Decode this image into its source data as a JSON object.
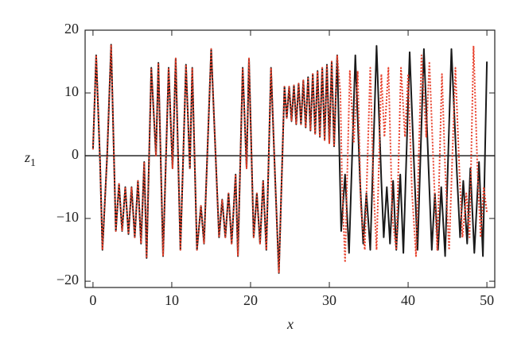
{
  "chart_data": {
    "type": "line",
    "xlabel": "x",
    "ylabel": {
      "text": "z",
      "subscript": "1"
    },
    "xlim": [
      -1,
      51
    ],
    "ylim": [
      -21,
      20
    ],
    "xticks": [
      0,
      10,
      20,
      30,
      40,
      50
    ],
    "yticks": [
      {
        "value": -20,
        "label": "−20"
      },
      {
        "value": -10,
        "label": "−10"
      },
      0,
      10,
      20
    ],
    "hline": 0,
    "series": [
      {
        "color": "#1a1a1a",
        "style": "solid",
        "x": [
          0,
          0.4,
          0.9,
          1.2,
          1.8,
          2.3,
          2.9,
          3.3,
          3.7,
          4.1,
          4.5,
          4.9,
          5.3,
          5.7,
          6.1,
          6.5,
          6.8,
          7.4,
          8.0,
          8.3,
          8.9,
          9.6,
          10.1,
          10.5,
          11.1,
          11.8,
          12.3,
          12.6,
          13.2,
          13.7,
          14.1,
          15.0,
          15.6,
          16.0,
          16.4,
          16.8,
          17.2,
          17.6,
          18.1,
          18.4,
          19.0,
          19.5,
          19.8,
          20.4,
          20.8,
          21.2,
          21.6,
          22.0,
          22.6,
          23.1,
          23.6,
          24.3,
          24.6,
          24.9,
          25.2,
          25.5,
          25.8,
          26.1,
          26.4,
          26.7,
          27.0,
          27.3,
          27.6,
          27.9,
          28.2,
          28.5,
          28.8,
          29.1,
          29.4,
          29.7,
          30.0,
          30.3,
          30.6,
          31.0,
          31.5,
          32,
          32.5,
          33.3,
          33.9,
          34.3,
          34.7,
          35.2,
          36.0,
          36.6,
          36.9,
          37.3,
          37.7,
          38.1,
          38.5,
          39.0,
          39.4,
          40.2,
          40.8,
          41.2,
          42.0,
          42.6,
          43.0,
          43.4,
          43.8,
          44.2,
          44.7,
          45.5,
          46.2,
          46.6,
          47.0,
          47.5,
          47.9,
          48.4,
          49.0,
          49.5,
          50.0
        ],
        "values": [
          1,
          16,
          -1,
          -15,
          0,
          17.7,
          -12,
          -4.5,
          -12,
          -5,
          -12.5,
          -5,
          -13,
          -4,
          -14,
          -1,
          -16.3,
          14,
          0,
          14.8,
          -16,
          14,
          -2,
          15.5,
          -15,
          14.5,
          -2,
          14,
          -15,
          -8,
          -14,
          17,
          -1,
          -13,
          -7,
          -13,
          -6,
          -14,
          -3,
          -16,
          14,
          -2,
          15.5,
          -13,
          -6,
          -14,
          -4,
          -15,
          14,
          -3,
          -18.7,
          11,
          6,
          11,
          5.5,
          11.2,
          5,
          11.5,
          5,
          12,
          4.5,
          12.5,
          4,
          13,
          3.5,
          13.5,
          3,
          14,
          2.5,
          14.5,
          2,
          15,
          1.5,
          16,
          -12,
          -3,
          -15.5,
          16,
          -4,
          -14,
          -6,
          -15,
          17.5,
          -4,
          -13,
          -5,
          -14,
          -4,
          -15,
          -3,
          -15.5,
          16.5,
          -3,
          -15,
          17,
          -2,
          -15,
          -6,
          -15,
          -5,
          -16,
          17,
          -3,
          -13,
          -4,
          -14,
          -2,
          -15.5,
          -1,
          -16,
          15
        ]
      },
      {
        "color": "#e8412c",
        "style": "dotted",
        "x": [
          0,
          0.4,
          0.9,
          1.2,
          1.8,
          2.3,
          2.9,
          3.3,
          3.7,
          4.1,
          4.5,
          4.9,
          5.3,
          5.7,
          6.1,
          6.5,
          6.8,
          7.4,
          8.0,
          8.3,
          8.9,
          9.6,
          10.1,
          10.5,
          11.1,
          11.8,
          12.3,
          12.6,
          13.2,
          13.7,
          14.1,
          15.0,
          15.6,
          16.0,
          16.4,
          16.8,
          17.2,
          17.6,
          18.1,
          18.4,
          19.0,
          19.5,
          19.8,
          20.4,
          20.8,
          21.2,
          21.6,
          22.0,
          22.6,
          23.1,
          23.6,
          24.3,
          24.6,
          24.9,
          25.2,
          25.5,
          25.8,
          26.1,
          26.4,
          26.7,
          27.0,
          27.3,
          27.6,
          27.9,
          28.2,
          28.5,
          28.8,
          29.1,
          29.4,
          29.7,
          30.0,
          30.3,
          30.6,
          31.0,
          31.4,
          31.6,
          32.0,
          32.6,
          33.1,
          33.6,
          34.0,
          34.5,
          35.2,
          35.6,
          36,
          36.6,
          37,
          37.5,
          38,
          38.5,
          39.1,
          39.6,
          40,
          40.5,
          41.0,
          41.7,
          42.3,
          42.7,
          43.3,
          43.7,
          44.3,
          44.7,
          45.2,
          46,
          46.5,
          46.9,
          47.4,
          47.8,
          48.3,
          48.8,
          49.2,
          49.6,
          50.0
        ],
        "values": [
          1,
          16,
          -1,
          -15,
          0,
          17.7,
          -12,
          -4.5,
          -12,
          -5,
          -12.5,
          -5,
          -13,
          -4,
          -14,
          -1,
          -16.3,
          14,
          0,
          14.8,
          -16,
          14,
          -2,
          15.5,
          -15,
          14.5,
          -2,
          14,
          -15,
          -8,
          -14,
          17,
          -1,
          -13,
          -7,
          -13,
          -6,
          -14,
          -3,
          -16,
          14,
          -2,
          15.5,
          -13,
          -6,
          -14,
          -4,
          -15,
          14,
          -3,
          -18.7,
          11,
          6,
          11,
          5.5,
          11.2,
          5,
          11.5,
          5,
          12,
          4.5,
          12.5,
          4,
          13,
          3.5,
          13.5,
          3,
          14,
          2.5,
          14.5,
          2,
          15,
          1.5,
          16,
          10,
          -4,
          -17,
          13.5,
          2,
          13.5,
          -8,
          -15,
          14,
          -5,
          -15,
          13,
          3,
          14,
          -10,
          -15,
          14,
          3,
          13,
          -6,
          -16,
          16,
          3,
          15,
          -4,
          -15,
          13,
          -2,
          -15,
          14,
          -2,
          -13,
          -6,
          -13,
          17.5,
          -2,
          -13,
          -5,
          -9
        ]
      }
    ]
  }
}
